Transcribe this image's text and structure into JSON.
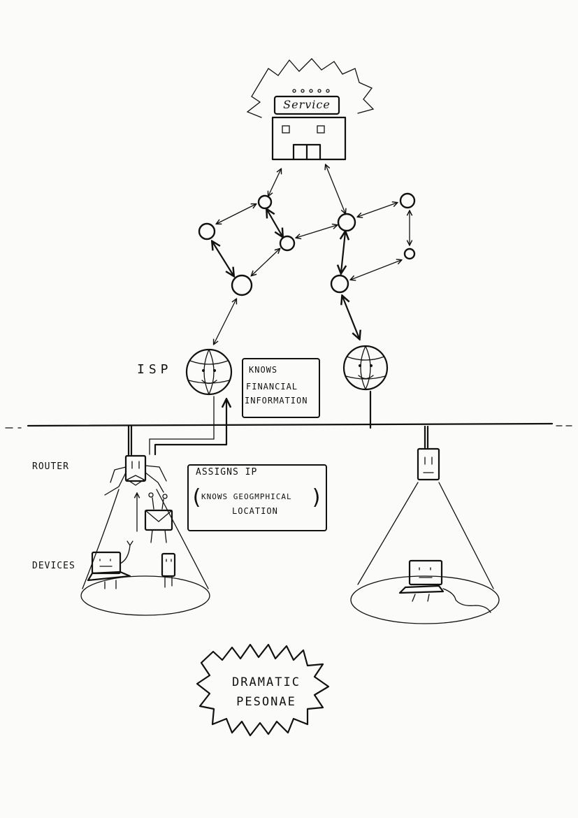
{
  "service": {
    "sign": "Service"
  },
  "labels": {
    "isp": "ISP",
    "router": "ROUTER",
    "devices": "DEVICES"
  },
  "isp_note": {
    "line1": "KNOWS",
    "line2": "FINANCIAL",
    "line3": "INFORMATION"
  },
  "router_note": {
    "line1": "ASSIGNS IP",
    "line2": "KNOWS GEOGMPHICAL",
    "line3": "LOCATION"
  },
  "title": {
    "line1": "DRAMATIC",
    "line2": "PESONAE"
  }
}
